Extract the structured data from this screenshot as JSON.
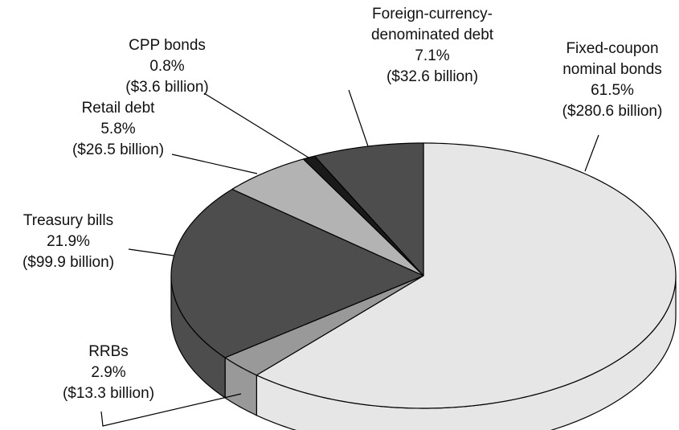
{
  "chart_data": {
    "type": "pie3d",
    "categories": [
      "Fixed-coupon nominal bonds",
      "RRBs",
      "Treasury bills",
      "Retail debt",
      "CPP bonds",
      "Foreign-currency-denominated debt"
    ],
    "values": [
      61.5,
      2.9,
      21.9,
      5.8,
      0.8,
      7.1
    ],
    "value_labels": [
      "61.5%",
      "2.9%",
      "21.9%",
      "5.8%",
      "0.8%",
      "7.1%"
    ],
    "amounts": [
      280.6,
      13.3,
      99.9,
      26.5,
      3.6,
      32.6
    ],
    "amount_labels": [
      "($280.6 billion)",
      "($13.3 billion)",
      "($99.9 billion)",
      "($26.5 billion)",
      "($3.6 billion)",
      "($32.6 billion)"
    ],
    "colors": [
      "#e6e6e6",
      "#999999",
      "#4d4d4d",
      "#b3b3b3",
      "#1a1a1a",
      "#4d4d4d"
    ]
  }
}
